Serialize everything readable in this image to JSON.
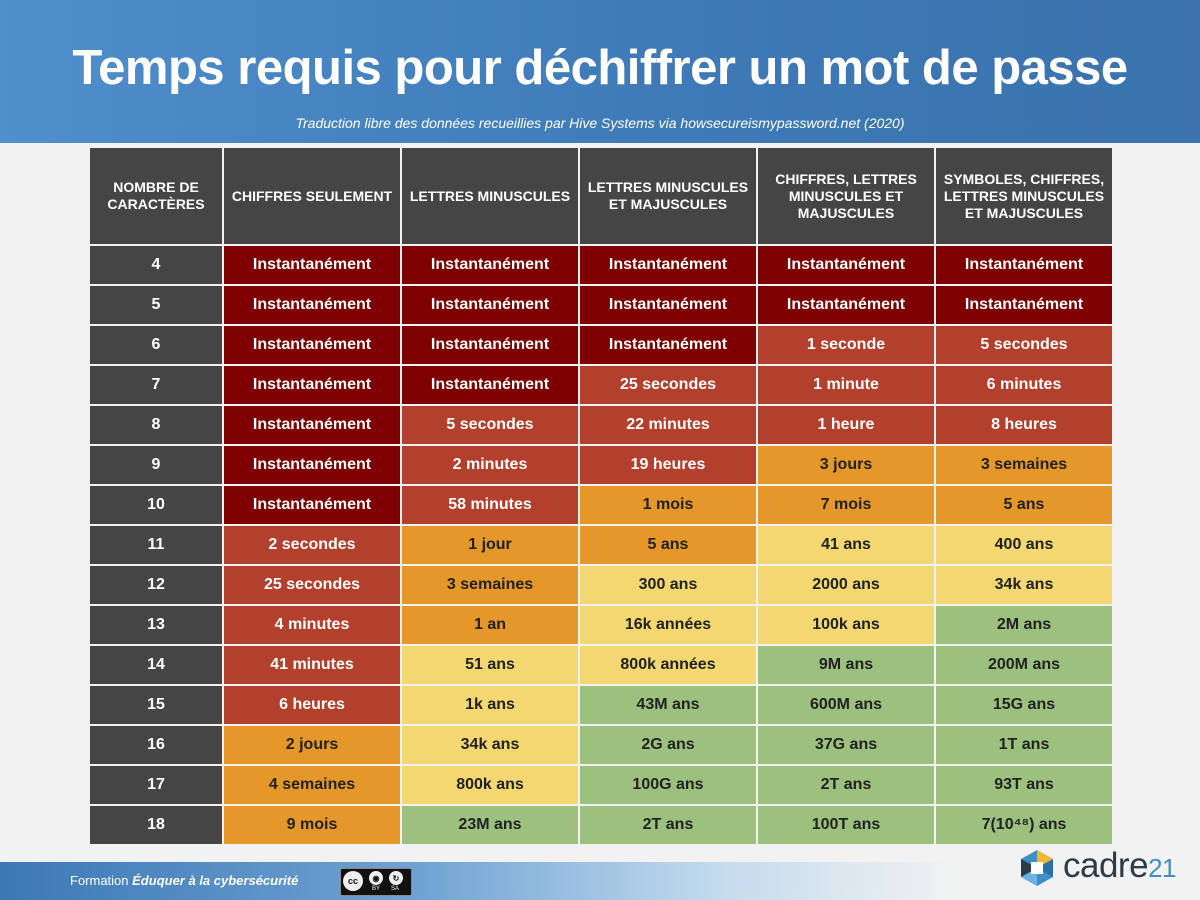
{
  "title": "Temps requis pour déchiffrer un mot de passe",
  "subtitle": "Traduction libre des données recueillies par Hive Systems via howsecureismypassword.net (2020)",
  "table": {
    "headers": [
      "NOMBRE DE CARACTÈRES",
      "CHIFFRES SEULEMENT",
      "LETTRES MINUSCULES",
      "LETTRES MINUSCULES ET MAJUSCULES",
      "CHIFFRES, LETTRES MINUSCULES ET MAJUSCULES",
      "SYMBOLES, CHIFFRES, LETTRES MINUSCULES ET MAJUSCULES"
    ],
    "rows": [
      {
        "n": "4",
        "cells": [
          [
            "Instantanément",
            1
          ],
          [
            "Instantanément",
            1
          ],
          [
            "Instantanément",
            1
          ],
          [
            "Instantanément",
            1
          ],
          [
            "Instantanément",
            1
          ]
        ]
      },
      {
        "n": "5",
        "cells": [
          [
            "Instantanément",
            1
          ],
          [
            "Instantanément",
            1
          ],
          [
            "Instantanément",
            1
          ],
          [
            "Instantanément",
            1
          ],
          [
            "Instantanément",
            1
          ]
        ]
      },
      {
        "n": "6",
        "cells": [
          [
            "Instantanément",
            1
          ],
          [
            "Instantanément",
            1
          ],
          [
            "Instantanément",
            1
          ],
          [
            "1 seconde",
            2
          ],
          [
            "5 secondes",
            2
          ]
        ]
      },
      {
        "n": "7",
        "cells": [
          [
            "Instantanément",
            1
          ],
          [
            "Instantanément",
            1
          ],
          [
            "25 secondes",
            2
          ],
          [
            "1 minute",
            2
          ],
          [
            "6 minutes",
            2
          ]
        ]
      },
      {
        "n": "8",
        "cells": [
          [
            "Instantanément",
            1
          ],
          [
            "5 secondes",
            2
          ],
          [
            "22 minutes",
            2
          ],
          [
            "1 heure",
            2
          ],
          [
            "8 heures",
            2
          ]
        ]
      },
      {
        "n": "9",
        "cells": [
          [
            "Instantanément",
            1
          ],
          [
            "2 minutes",
            2
          ],
          [
            "19 heures",
            2
          ],
          [
            "3 jours",
            3
          ],
          [
            "3 semaines",
            3
          ]
        ]
      },
      {
        "n": "10",
        "cells": [
          [
            "Instantanément",
            1
          ],
          [
            "58 minutes",
            2
          ],
          [
            "1 mois",
            3
          ],
          [
            "7 mois",
            3
          ],
          [
            "5 ans",
            3
          ]
        ]
      },
      {
        "n": "11",
        "cells": [
          [
            "2 secondes",
            2
          ],
          [
            "1 jour",
            3
          ],
          [
            "5 ans",
            3
          ],
          [
            "41 ans",
            4
          ],
          [
            "400 ans",
            4
          ]
        ]
      },
      {
        "n": "12",
        "cells": [
          [
            "25 secondes",
            2
          ],
          [
            "3 semaines",
            3
          ],
          [
            "300 ans",
            4
          ],
          [
            "2000 ans",
            4
          ],
          [
            "34k ans",
            4
          ]
        ]
      },
      {
        "n": "13",
        "cells": [
          [
            "4 minutes",
            2
          ],
          [
            "1 an",
            3
          ],
          [
            "16k années",
            4
          ],
          [
            "100k ans",
            4
          ],
          [
            "2M ans",
            5
          ]
        ]
      },
      {
        "n": "14",
        "cells": [
          [
            "41 minutes",
            2
          ],
          [
            "51 ans",
            4
          ],
          [
            "800k années",
            4
          ],
          [
            "9M ans",
            5
          ],
          [
            "200M ans",
            5
          ]
        ]
      },
      {
        "n": "15",
        "cells": [
          [
            "6 heures",
            2
          ],
          [
            "1k ans",
            4
          ],
          [
            "43M ans",
            5
          ],
          [
            "600M ans",
            5
          ],
          [
            "15G ans",
            5
          ]
        ]
      },
      {
        "n": "16",
        "cells": [
          [
            "2 jours",
            3
          ],
          [
            "34k ans",
            4
          ],
          [
            "2G ans",
            5
          ],
          [
            "37G ans",
            5
          ],
          [
            "1T ans",
            5
          ]
        ]
      },
      {
        "n": "17",
        "cells": [
          [
            "4 semaines",
            3
          ],
          [
            "800k ans",
            4
          ],
          [
            "100G ans",
            5
          ],
          [
            "2T ans",
            5
          ],
          [
            "93T ans",
            5
          ]
        ]
      },
      {
        "n": "18",
        "cells": [
          [
            "9 mois",
            3
          ],
          [
            "23M ans",
            5
          ],
          [
            "2T ans",
            5
          ],
          [
            "100T ans",
            5
          ],
          [
            "7(10⁴⁸) ans",
            5
          ]
        ]
      }
    ]
  },
  "colors": {
    "level_1": "#7e0000",
    "level_2": "#b2402d",
    "level_3": "#e6972a",
    "level_4": "#f3d872",
    "level_5": "#9cc17e",
    "header_bg": "#454545",
    "banner": "#4584c2"
  },
  "footer": {
    "prefix": "Formation ",
    "course": "Éduquer à la cybersécurité",
    "license_main": "cc",
    "license_by": "BY",
    "license_sa": "SA"
  },
  "logo": {
    "word": "cadre",
    "number": "21",
    "icon": "hexagon-logo-icon"
  }
}
